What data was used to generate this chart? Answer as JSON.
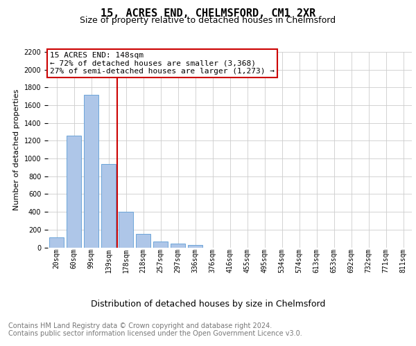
{
  "title": "15, ACRES END, CHELMSFORD, CM1 2XR",
  "subtitle": "Size of property relative to detached houses in Chelmsford",
  "xlabel": "Distribution of detached houses by size in Chelmsford",
  "ylabel": "Number of detached properties",
  "categories": [
    "20sqm",
    "60sqm",
    "99sqm",
    "139sqm",
    "178sqm",
    "218sqm",
    "257sqm",
    "297sqm",
    "336sqm",
    "376sqm",
    "416sqm",
    "455sqm",
    "495sqm",
    "534sqm",
    "574sqm",
    "613sqm",
    "653sqm",
    "692sqm",
    "732sqm",
    "771sqm",
    "811sqm"
  ],
  "values": [
    110,
    1260,
    1720,
    940,
    400,
    150,
    70,
    40,
    25,
    0,
    0,
    0,
    0,
    0,
    0,
    0,
    0,
    0,
    0,
    0,
    0
  ],
  "bar_color": "#aec6e8",
  "bar_edge_color": "#5b9bd5",
  "vline_x": 3.5,
  "vline_color": "#cc0000",
  "annotation_text": "15 ACRES END: 148sqm\n← 72% of detached houses are smaller (3,368)\n27% of semi-detached houses are larger (1,273) →",
  "annotation_box_color": "#ffffff",
  "annotation_box_edge_color": "#cc0000",
  "ylim": [
    0,
    2200
  ],
  "yticks": [
    0,
    200,
    400,
    600,
    800,
    1000,
    1200,
    1400,
    1600,
    1800,
    2000,
    2200
  ],
  "footnote1": "Contains HM Land Registry data © Crown copyright and database right 2024.",
  "footnote2": "Contains public sector information licensed under the Open Government Licence v3.0.",
  "background_color": "#ffffff",
  "grid_color": "#cccccc",
  "title_fontsize": 11,
  "subtitle_fontsize": 9,
  "xlabel_fontsize": 9,
  "ylabel_fontsize": 8,
  "tick_fontsize": 7,
  "annotation_fontsize": 8,
  "footnote_fontsize": 7
}
